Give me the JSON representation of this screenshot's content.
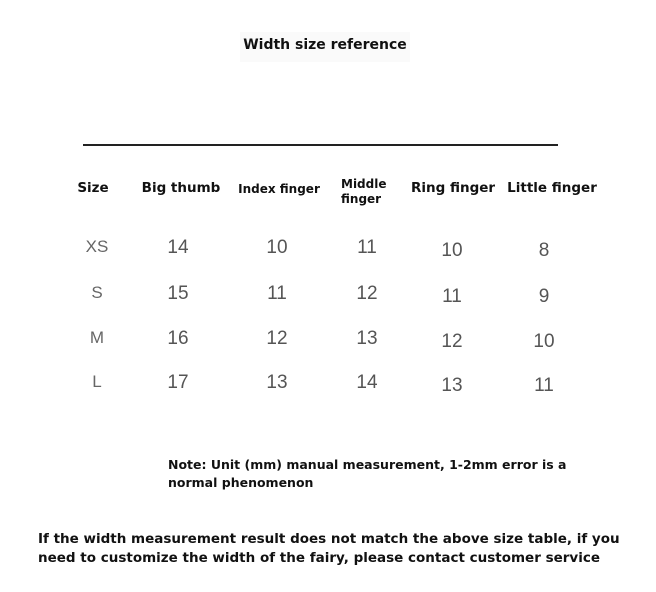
{
  "title": "Width size reference",
  "table": {
    "headers": [
      "Size",
      "Big thumb",
      "Index finger",
      "Middle\nfinger",
      "Ring finger",
      "Little finger"
    ],
    "rows": [
      [
        "XS",
        "14",
        "10",
        "11",
        "10",
        "8"
      ],
      [
        "S",
        "15",
        "11",
        "12",
        "11",
        "9"
      ],
      [
        "M",
        "16",
        "12",
        "13",
        "12",
        "10"
      ],
      [
        "L",
        "17",
        "13",
        "14",
        "13",
        "11"
      ]
    ]
  },
  "note": "Note: Unit (mm) manual measurement, 1-2mm error is a normal phenomenon",
  "footer": "If the width measurement result does not match the above size table, if you need to customize the width of the fairy, please contact customer service"
}
